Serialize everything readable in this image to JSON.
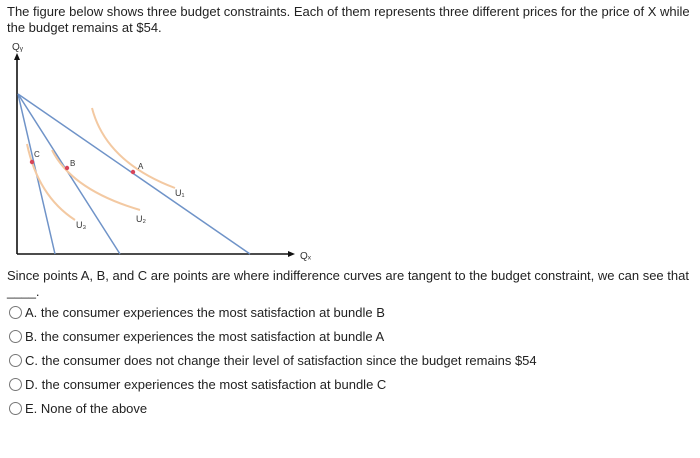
{
  "question": {
    "intro": "The figure below shows three budget constraints. Each of them represents three different prices for the price of X while the budget remains at $54.",
    "prompt": "Since points A, B, and C are points are where indifference curves are tangent to the budget constraint, we can see that ____."
  },
  "diagram": {
    "y_axis_label": "Qᵧ",
    "x_axis_label": "Qₓ",
    "points": [
      {
        "label": "A"
      },
      {
        "label": "B"
      },
      {
        "label": "C"
      }
    ],
    "curves": [
      {
        "label": "U₁"
      },
      {
        "label": "U₂"
      },
      {
        "label": "U₃"
      }
    ],
    "colors": {
      "budget_line": "#6f93c8",
      "indifference_curve": "#f3c9a2",
      "point": "#d7465a",
      "axis": "#111111"
    }
  },
  "options": [
    {
      "label": "A. the consumer experiences the most satisfaction at bundle B"
    },
    {
      "label": "B. the consumer experiences the most satisfaction at bundle A"
    },
    {
      "label": "C. the consumer does not change their level of satisfaction since the budget remains $54"
    },
    {
      "label": "D. the consumer experiences the most satisfaction at bundle C"
    },
    {
      "label": "E. None of the above"
    }
  ]
}
